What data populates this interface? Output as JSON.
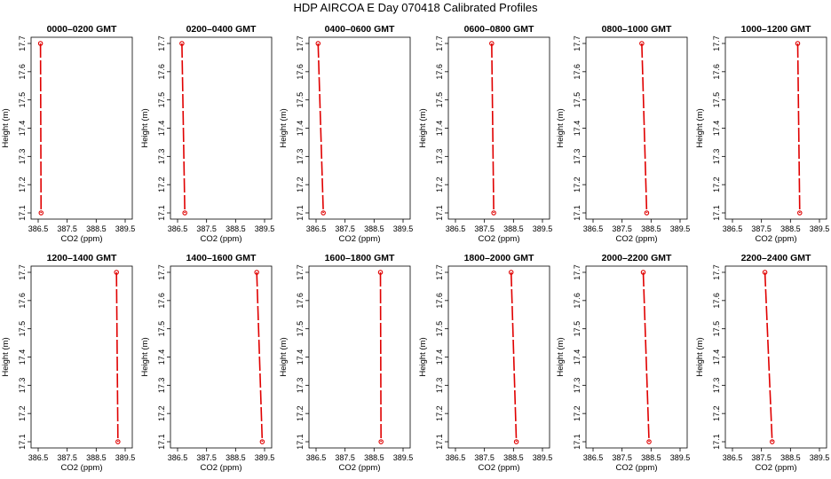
{
  "title": "HDP AIRCOA E  Day 070418  Calibrated Profiles",
  "chart_data": [
    {
      "type": "line",
      "title": "0000–0200 GMT",
      "xlabel": "CO2 (ppm)",
      "ylabel": "Height (m)",
      "xlim": [
        386.5,
        389.5
      ],
      "ylim": [
        17.1,
        17.7
      ],
      "x_ticks": [
        "386.5",
        "387.5",
        "388.5",
        "389.5"
      ],
      "y_ticks": [
        "17.1",
        "17.2",
        "17.3",
        "17.4",
        "17.5",
        "17.6",
        "17.7"
      ],
      "series": [
        {
          "x": [
            386.58,
            386.6
          ],
          "y": [
            17.7,
            17.1
          ],
          "color": "#e00000"
        }
      ]
    },
    {
      "type": "line",
      "title": "0200–0400 GMT",
      "xlabel": "CO2 (ppm)",
      "ylabel": "Height (m)",
      "xlim": [
        386.5,
        389.5
      ],
      "ylim": [
        17.1,
        17.7
      ],
      "x_ticks": [
        "386.5",
        "387.5",
        "388.5",
        "389.5"
      ],
      "y_ticks": [
        "17.1",
        "17.2",
        "17.3",
        "17.4",
        "17.5",
        "17.6",
        "17.7"
      ],
      "series": [
        {
          "x": [
            386.65,
            386.75
          ],
          "y": [
            17.7,
            17.1
          ],
          "color": "#e00000"
        }
      ]
    },
    {
      "type": "line",
      "title": "0400–0600 GMT",
      "xlabel": "CO2 (ppm)",
      "ylabel": "Height (m)",
      "xlim": [
        386.5,
        389.5
      ],
      "ylim": [
        17.1,
        17.7
      ],
      "x_ticks": [
        "386.5",
        "387.5",
        "388.5",
        "389.5"
      ],
      "y_ticks": [
        "17.1",
        "17.2",
        "17.3",
        "17.4",
        "17.5",
        "17.6",
        "17.7"
      ],
      "series": [
        {
          "x": [
            386.57,
            386.75
          ],
          "y": [
            17.7,
            17.1
          ],
          "color": "#e00000"
        }
      ]
    },
    {
      "type": "line",
      "title": "0600–0800 GMT",
      "xlabel": "CO2 (ppm)",
      "ylabel": "Height (m)",
      "xlim": [
        386.5,
        389.5
      ],
      "ylim": [
        17.1,
        17.7
      ],
      "x_ticks": [
        "386.5",
        "387.5",
        "388.5",
        "389.5"
      ],
      "y_ticks": [
        "17.1",
        "17.2",
        "17.3",
        "17.4",
        "17.5",
        "17.6",
        "17.7"
      ],
      "series": [
        {
          "x": [
            387.75,
            387.82
          ],
          "y": [
            17.7,
            17.1
          ],
          "color": "#e00000"
        }
      ]
    },
    {
      "type": "line",
      "title": "0800–1000 GMT",
      "xlabel": "CO2 (ppm)",
      "ylabel": "Height (m)",
      "xlim": [
        386.5,
        389.5
      ],
      "ylim": [
        17.1,
        17.7
      ],
      "x_ticks": [
        "386.5",
        "387.5",
        "388.5",
        "389.5"
      ],
      "y_ticks": [
        "17.1",
        "17.2",
        "17.3",
        "17.4",
        "17.5",
        "17.6",
        "17.7"
      ],
      "series": [
        {
          "x": [
            388.18,
            388.35
          ],
          "y": [
            17.7,
            17.1
          ],
          "color": "#e00000"
        }
      ]
    },
    {
      "type": "line",
      "title": "1000–1200 GMT",
      "xlabel": "CO2 (ppm)",
      "ylabel": "Height (m)",
      "xlim": [
        386.5,
        389.5
      ],
      "ylim": [
        17.1,
        17.7
      ],
      "x_ticks": [
        "386.5",
        "387.5",
        "388.5",
        "389.5"
      ],
      "y_ticks": [
        "17.1",
        "17.2",
        "17.3",
        "17.4",
        "17.5",
        "17.6",
        "17.7"
      ],
      "series": [
        {
          "x": [
            388.75,
            388.82
          ],
          "y": [
            17.7,
            17.1
          ],
          "color": "#e00000"
        }
      ]
    },
    {
      "type": "line",
      "title": "1200–1400 GMT",
      "xlabel": "CO2 (ppm)",
      "ylabel": "Height (m)",
      "xlim": [
        386.5,
        389.5
      ],
      "ylim": [
        17.1,
        17.7
      ],
      "x_ticks": [
        "386.5",
        "387.5",
        "388.5",
        "389.5"
      ],
      "y_ticks": [
        "17.1",
        "17.2",
        "17.3",
        "17.4",
        "17.5",
        "17.6",
        "17.7"
      ],
      "series": [
        {
          "x": [
            389.2,
            389.25
          ],
          "y": [
            17.7,
            17.1
          ],
          "color": "#e00000"
        }
      ]
    },
    {
      "type": "line",
      "title": "1400–1600 GMT",
      "xlabel": "CO2 (ppm)",
      "ylabel": "Height (m)",
      "xlim": [
        386.5,
        389.5
      ],
      "ylim": [
        17.1,
        17.7
      ],
      "x_ticks": [
        "386.5",
        "387.5",
        "388.5",
        "389.5"
      ],
      "y_ticks": [
        "17.1",
        "17.2",
        "17.3",
        "17.4",
        "17.5",
        "17.6",
        "17.7"
      ],
      "series": [
        {
          "x": [
            389.23,
            389.42
          ],
          "y": [
            17.7,
            17.1
          ],
          "color": "#e00000"
        }
      ]
    },
    {
      "type": "line",
      "title": "1600–1800 GMT",
      "xlabel": "CO2 (ppm)",
      "ylabel": "Height (m)",
      "xlim": [
        386.5,
        389.5
      ],
      "ylim": [
        17.1,
        17.7
      ],
      "x_ticks": [
        "386.5",
        "387.5",
        "388.5",
        "389.5"
      ],
      "y_ticks": [
        "17.1",
        "17.2",
        "17.3",
        "17.4",
        "17.5",
        "17.6",
        "17.7"
      ],
      "series": [
        {
          "x": [
            388.72,
            388.74
          ],
          "y": [
            17.7,
            17.1
          ],
          "color": "#e00000"
        }
      ]
    },
    {
      "type": "line",
      "title": "1800–2000 GMT",
      "xlabel": "CO2 (ppm)",
      "ylabel": "Height (m)",
      "xlim": [
        386.5,
        389.5
      ],
      "ylim": [
        17.1,
        17.7
      ],
      "x_ticks": [
        "386.5",
        "387.5",
        "388.5",
        "389.5"
      ],
      "y_ticks": [
        "17.1",
        "17.2",
        "17.3",
        "17.4",
        "17.5",
        "17.6",
        "17.7"
      ],
      "series": [
        {
          "x": [
            388.42,
            388.6
          ],
          "y": [
            17.7,
            17.1
          ],
          "color": "#e00000"
        }
      ]
    },
    {
      "type": "line",
      "title": "2000–2200 GMT",
      "xlabel": "CO2 (ppm)",
      "ylabel": "Height (m)",
      "xlim": [
        386.5,
        389.5
      ],
      "ylim": [
        17.1,
        17.7
      ],
      "x_ticks": [
        "386.5",
        "387.5",
        "388.5",
        "389.5"
      ],
      "y_ticks": [
        "17.1",
        "17.2",
        "17.3",
        "17.4",
        "17.5",
        "17.6",
        "17.7"
      ],
      "series": [
        {
          "x": [
            388.23,
            388.43
          ],
          "y": [
            17.7,
            17.1
          ],
          "color": "#e00000"
        }
      ]
    },
    {
      "type": "line",
      "title": "2200–2400 GMT",
      "xlabel": "CO2 (ppm)",
      "ylabel": "Height (m)",
      "xlim": [
        386.5,
        389.5
      ],
      "ylim": [
        17.1,
        17.7
      ],
      "x_ticks": [
        "386.5",
        "387.5",
        "388.5",
        "389.5"
      ],
      "y_ticks": [
        "17.1",
        "17.2",
        "17.3",
        "17.4",
        "17.5",
        "17.6",
        "17.7"
      ],
      "series": [
        {
          "x": [
            387.62,
            387.87
          ],
          "y": [
            17.7,
            17.1
          ],
          "color": "#e00000"
        }
      ]
    }
  ]
}
